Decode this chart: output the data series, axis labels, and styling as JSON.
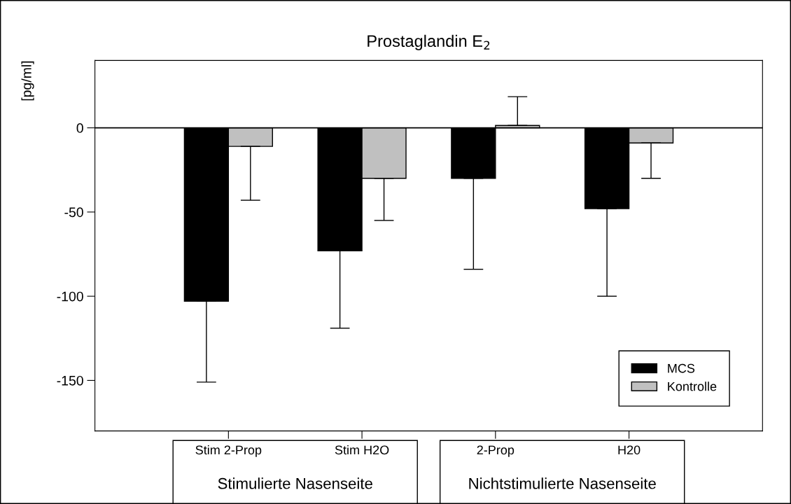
{
  "chart_data": {
    "type": "bar",
    "title": "Prostaglandin E$_{2}$",
    "ylabel": "[pg/ml]",
    "categories": [
      "Stim 2-Prop",
      "Stim H2O",
      "2-Prop",
      "H20"
    ],
    "series": [
      {
        "name": "MCS",
        "color": "#000000",
        "values": [
          -103,
          -73,
          -30,
          -48
        ],
        "errors": [
          [
            -151,
            -103
          ],
          [
            -119,
            -73
          ],
          [
            -84,
            -30
          ],
          [
            -100,
            -48
          ]
        ]
      },
      {
        "name": "Kontrolle",
        "color": "#c0c0c0",
        "values": [
          -11,
          -30,
          1.4,
          -9
        ],
        "errors": [
          [
            -43,
            -11
          ],
          [
            -55,
            -30
          ],
          [
            1.4,
            18.5
          ],
          [
            -30,
            -9
          ]
        ]
      }
    ],
    "annotations": [
      "Stimulierte Nasenseite",
      "Nichtstimulierte Nasenseite"
    ],
    "ylim": [
      -180,
      40
    ],
    "yticks": [
      -150,
      -100,
      -50,
      0
    ],
    "ref_lines": [
      {
        "axis": "y",
        "value": 0,
        "label": null,
        "color": "#000000"
      }
    ],
    "legend": "bottom right",
    "grid": false
  }
}
